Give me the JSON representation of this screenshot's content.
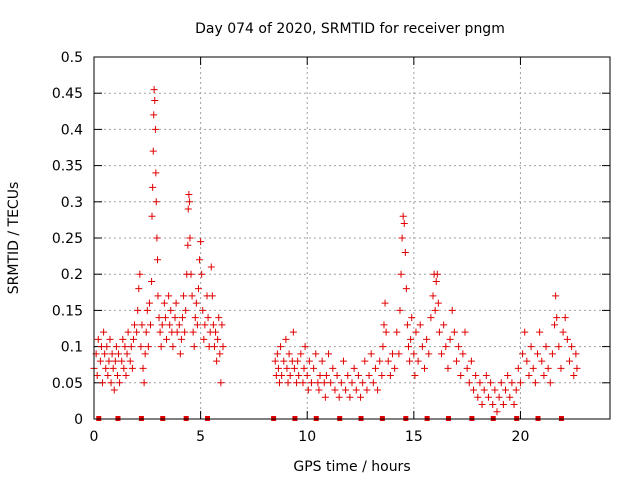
{
  "chart_data": {
    "type": "scatter",
    "title": "Day 074 of 2020, SRMTID for receiver pngm",
    "xlabel": "GPS time / hours",
    "ylabel": "SRMTID / TECUs",
    "xlim": [
      0,
      24.2
    ],
    "ylim": [
      0,
      0.5
    ],
    "x_ticks": [
      0,
      5,
      10,
      15,
      20
    ],
    "x_tick_labels": [
      "0",
      "5",
      "10",
      "15",
      "20"
    ],
    "y_ticks": [
      0,
      0.05,
      0.1,
      0.15,
      0.2,
      0.25,
      0.3,
      0.35,
      0.4,
      0.45,
      0.5
    ],
    "y_tick_labels": [
      "0",
      "0.05",
      "0.1",
      "0.15",
      "0.2",
      "0.25",
      "0.3",
      "0.35",
      "0.4",
      "0.45",
      "0.5"
    ],
    "grid": true,
    "marker": "+",
    "color": "#e00000",
    "series": [
      {
        "name": "SRMTID",
        "points": [
          [
            0.0,
            0.07
          ],
          [
            0.1,
            0.09
          ],
          [
            0.15,
            0.06
          ],
          [
            0.2,
            0.11
          ],
          [
            0.3,
            0.08
          ],
          [
            0.35,
            0.1
          ],
          [
            0.4,
            0.05
          ],
          [
            0.45,
            0.12
          ],
          [
            0.5,
            0.09
          ],
          [
            0.55,
            0.07
          ],
          [
            0.6,
            0.1
          ],
          [
            0.65,
            0.06
          ],
          [
            0.7,
            0.08
          ],
          [
            0.75,
            0.11
          ],
          [
            0.8,
            0.05
          ],
          [
            0.85,
            0.09
          ],
          [
            0.9,
            0.07
          ],
          [
            0.95,
            0.04
          ],
          [
            1.0,
            0.08
          ],
          [
            1.05,
            0.1
          ],
          [
            1.1,
            0.06
          ],
          [
            1.15,
            0.09
          ],
          [
            1.2,
            0.05
          ],
          [
            1.3,
            0.08
          ],
          [
            1.35,
            0.11
          ],
          [
            1.4,
            0.07
          ],
          [
            1.45,
            0.1
          ],
          [
            1.5,
            0.06
          ],
          [
            1.55,
            0.09
          ],
          [
            1.6,
            0.12
          ],
          [
            1.7,
            0.08
          ],
          [
            1.75,
            0.1
          ],
          [
            1.8,
            0.07
          ],
          [
            1.85,
            0.11
          ],
          [
            1.9,
            0.13
          ],
          [
            2.0,
            0.12
          ],
          [
            2.05,
            0.15
          ],
          [
            2.1,
            0.18
          ],
          [
            2.15,
            0.2
          ],
          [
            2.2,
            0.1
          ],
          [
            2.25,
            0.13
          ],
          [
            2.3,
            0.07
          ],
          [
            2.35,
            0.05
          ],
          [
            2.4,
            0.09
          ],
          [
            2.45,
            0.12
          ],
          [
            2.5,
            0.15
          ],
          [
            2.55,
            0.1
          ],
          [
            2.6,
            0.16
          ],
          [
            2.65,
            0.13
          ],
          [
            2.7,
            0.19
          ],
          [
            2.72,
            0.28
          ],
          [
            2.75,
            0.32
          ],
          [
            2.78,
            0.37
          ],
          [
            2.8,
            0.42
          ],
          [
            2.82,
            0.455
          ],
          [
            2.85,
            0.44
          ],
          [
            2.88,
            0.4
          ],
          [
            2.9,
            0.34
          ],
          [
            2.92,
            0.3
          ],
          [
            2.95,
            0.25
          ],
          [
            2.98,
            0.22
          ],
          [
            3.0,
            0.17
          ],
          [
            3.05,
            0.14
          ],
          [
            3.1,
            0.12
          ],
          [
            3.15,
            0.1
          ],
          [
            3.2,
            0.13
          ],
          [
            3.3,
            0.16
          ],
          [
            3.35,
            0.14
          ],
          [
            3.4,
            0.11
          ],
          [
            3.5,
            0.17
          ],
          [
            3.55,
            0.13
          ],
          [
            3.6,
            0.15
          ],
          [
            3.65,
            0.12
          ],
          [
            3.7,
            0.1
          ],
          [
            3.8,
            0.14
          ],
          [
            3.85,
            0.16
          ],
          [
            3.9,
            0.12
          ],
          [
            4.0,
            0.13
          ],
          [
            4.05,
            0.09
          ],
          [
            4.1,
            0.11
          ],
          [
            4.15,
            0.14
          ],
          [
            4.2,
            0.17
          ],
          [
            4.25,
            0.12
          ],
          [
            4.3,
            0.15
          ],
          [
            4.35,
            0.2
          ],
          [
            4.4,
            0.24
          ],
          [
            4.42,
            0.29
          ],
          [
            4.45,
            0.31
          ],
          [
            4.48,
            0.3
          ],
          [
            4.5,
            0.25
          ],
          [
            4.55,
            0.2
          ],
          [
            4.6,
            0.17
          ],
          [
            4.65,
            0.12
          ],
          [
            4.7,
            0.1
          ],
          [
            4.75,
            0.14
          ],
          [
            4.8,
            0.16
          ],
          [
            4.85,
            0.13
          ],
          [
            4.9,
            0.18
          ],
          [
            4.95,
            0.22
          ],
          [
            5.0,
            0.245
          ],
          [
            5.05,
            0.2
          ],
          [
            5.1,
            0.15
          ],
          [
            5.15,
            0.11
          ],
          [
            5.2,
            0.13
          ],
          [
            5.3,
            0.17
          ],
          [
            5.35,
            0.14
          ],
          [
            5.4,
            0.1
          ],
          [
            5.45,
            0.12
          ],
          [
            5.5,
            0.21
          ],
          [
            5.55,
            0.17
          ],
          [
            5.6,
            0.13
          ],
          [
            5.65,
            0.1
          ],
          [
            5.7,
            0.12
          ],
          [
            5.75,
            0.08
          ],
          [
            5.8,
            0.11
          ],
          [
            5.85,
            0.14
          ],
          [
            5.9,
            0.09
          ],
          [
            5.95,
            0.05
          ],
          [
            6.0,
            0.13
          ],
          [
            6.05,
            0.1
          ],
          [
            8.5,
            0.08
          ],
          [
            8.55,
            0.06
          ],
          [
            8.6,
            0.09
          ],
          [
            8.65,
            0.07
          ],
          [
            8.7,
            0.05
          ],
          [
            8.75,
            0.1
          ],
          [
            8.8,
            0.06
          ],
          [
            8.9,
            0.08
          ],
          [
            9.0,
            0.11
          ],
          [
            9.05,
            0.07
          ],
          [
            9.1,
            0.05
          ],
          [
            9.15,
            0.09
          ],
          [
            9.2,
            0.06
          ],
          [
            9.3,
            0.08
          ],
          [
            9.35,
            0.12
          ],
          [
            9.4,
            0.07
          ],
          [
            9.5,
            0.05
          ],
          [
            9.55,
            0.08
          ],
          [
            9.6,
            0.06
          ],
          [
            9.7,
            0.09
          ],
          [
            9.8,
            0.05
          ],
          [
            9.85,
            0.07
          ],
          [
            9.9,
            0.1
          ],
          [
            10.0,
            0.06
          ],
          [
            10.05,
            0.04
          ],
          [
            10.1,
            0.08
          ],
          [
            10.2,
            0.05
          ],
          [
            10.3,
            0.07
          ],
          [
            10.4,
            0.09
          ],
          [
            10.5,
            0.05
          ],
          [
            10.55,
            0.04
          ],
          [
            10.6,
            0.06
          ],
          [
            10.7,
            0.08
          ],
          [
            10.8,
            0.05
          ],
          [
            10.85,
            0.03
          ],
          [
            10.9,
            0.06
          ],
          [
            11.0,
            0.09
          ],
          [
            11.1,
            0.05
          ],
          [
            11.2,
            0.07
          ],
          [
            11.3,
            0.04
          ],
          [
            11.4,
            0.06
          ],
          [
            11.5,
            0.03
          ],
          [
            11.6,
            0.05
          ],
          [
            11.7,
            0.08
          ],
          [
            11.8,
            0.04
          ],
          [
            11.9,
            0.06
          ],
          [
            12.0,
            0.03
          ],
          [
            12.1,
            0.05
          ],
          [
            12.2,
            0.07
          ],
          [
            12.3,
            0.04
          ],
          [
            12.4,
            0.06
          ],
          [
            12.5,
            0.03
          ],
          [
            12.6,
            0.05
          ],
          [
            12.7,
            0.08
          ],
          [
            12.8,
            0.04
          ],
          [
            12.9,
            0.06
          ],
          [
            13.0,
            0.09
          ],
          [
            13.1,
            0.05
          ],
          [
            13.2,
            0.07
          ],
          [
            13.3,
            0.04
          ],
          [
            13.4,
            0.08
          ],
          [
            13.5,
            0.06
          ],
          [
            13.55,
            0.1
          ],
          [
            13.6,
            0.13
          ],
          [
            13.65,
            0.16
          ],
          [
            13.7,
            0.12
          ],
          [
            13.8,
            0.08
          ],
          [
            13.9,
            0.06
          ],
          [
            14.0,
            0.09
          ],
          [
            14.1,
            0.07
          ],
          [
            14.2,
            0.12
          ],
          [
            14.3,
            0.09
          ],
          [
            14.35,
            0.15
          ],
          [
            14.4,
            0.2
          ],
          [
            14.45,
            0.25
          ],
          [
            14.5,
            0.28
          ],
          [
            14.55,
            0.27
          ],
          [
            14.6,
            0.23
          ],
          [
            14.65,
            0.18
          ],
          [
            14.7,
            0.13
          ],
          [
            14.75,
            0.1
          ],
          [
            14.8,
            0.08
          ],
          [
            14.85,
            0.11
          ],
          [
            14.9,
            0.14
          ],
          [
            15.0,
            0.09
          ],
          [
            15.05,
            0.06
          ],
          [
            15.1,
            0.12
          ],
          [
            15.2,
            0.08
          ],
          [
            15.3,
            0.13
          ],
          [
            15.4,
            0.1
          ],
          [
            15.5,
            0.07
          ],
          [
            15.6,
            0.11
          ],
          [
            15.7,
            0.09
          ],
          [
            15.8,
            0.14
          ],
          [
            15.9,
            0.17
          ],
          [
            15.95,
            0.2
          ],
          [
            16.0,
            0.15
          ],
          [
            16.05,
            0.19
          ],
          [
            16.1,
            0.2
          ],
          [
            16.15,
            0.16
          ],
          [
            16.2,
            0.12
          ],
          [
            16.3,
            0.09
          ],
          [
            16.4,
            0.13
          ],
          [
            16.5,
            0.1
          ],
          [
            16.6,
            0.07
          ],
          [
            16.7,
            0.11
          ],
          [
            16.8,
            0.15
          ],
          [
            16.9,
            0.12
          ],
          [
            17.0,
            0.08
          ],
          [
            17.1,
            0.1
          ],
          [
            17.2,
            0.06
          ],
          [
            17.3,
            0.09
          ],
          [
            17.4,
            0.12
          ],
          [
            17.5,
            0.07
          ],
          [
            17.6,
            0.05
          ],
          [
            17.7,
            0.08
          ],
          [
            17.8,
            0.04
          ],
          [
            17.9,
            0.06
          ],
          [
            18.0,
            0.03
          ],
          [
            18.1,
            0.05
          ],
          [
            18.2,
            0.02
          ],
          [
            18.3,
            0.04
          ],
          [
            18.4,
            0.06
          ],
          [
            18.5,
            0.03
          ],
          [
            18.6,
            0.05
          ],
          [
            18.7,
            0.02
          ],
          [
            18.8,
            0.04
          ],
          [
            18.9,
            0.01
          ],
          [
            19.0,
            0.03
          ],
          [
            19.1,
            0.05
          ],
          [
            19.2,
            0.02
          ],
          [
            19.3,
            0.04
          ],
          [
            19.4,
            0.06
          ],
          [
            19.5,
            0.03
          ],
          [
            19.6,
            0.05
          ],
          [
            19.7,
            0.02
          ],
          [
            19.8,
            0.04
          ],
          [
            19.9,
            0.07
          ],
          [
            20.0,
            0.05
          ],
          [
            20.1,
            0.09
          ],
          [
            20.2,
            0.12
          ],
          [
            20.3,
            0.08
          ],
          [
            20.4,
            0.06
          ],
          [
            20.5,
            0.1
          ],
          [
            20.6,
            0.07
          ],
          [
            20.7,
            0.05
          ],
          [
            20.8,
            0.09
          ],
          [
            20.9,
            0.12
          ],
          [
            21.0,
            0.08
          ],
          [
            21.1,
            0.06
          ],
          [
            21.2,
            0.1
          ],
          [
            21.3,
            0.07
          ],
          [
            21.4,
            0.05
          ],
          [
            21.5,
            0.09
          ],
          [
            21.6,
            0.13
          ],
          [
            21.65,
            0.17
          ],
          [
            21.7,
            0.14
          ],
          [
            21.8,
            0.1
          ],
          [
            21.9,
            0.07
          ],
          [
            22.0,
            0.12
          ],
          [
            22.1,
            0.14
          ],
          [
            22.2,
            0.11
          ],
          [
            22.3,
            0.08
          ],
          [
            22.4,
            0.1
          ],
          [
            22.5,
            0.06
          ],
          [
            22.6,
            0.09
          ],
          [
            22.65,
            0.07
          ]
        ]
      }
    ],
    "baseline_markers": [
      0.2,
      1.1,
      2.2,
      3.2,
      4.3,
      5.3,
      8.4,
      9.4,
      10.4,
      11.5,
      12.5,
      13.5,
      14.6,
      15.6,
      16.6,
      17.7,
      18.7,
      19.8,
      20.8,
      21.9
    ]
  }
}
